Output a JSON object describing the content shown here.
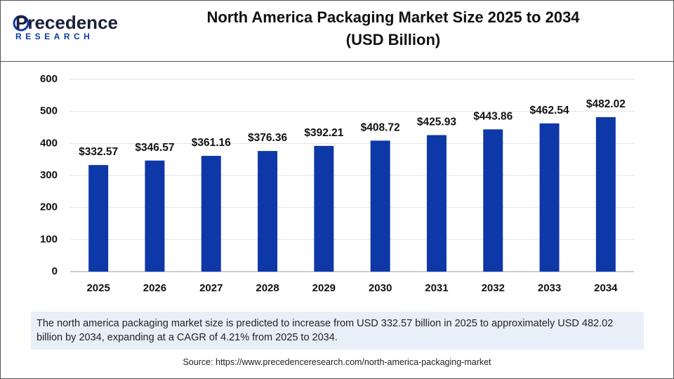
{
  "logo": {
    "name": "Precedence",
    "tagline": "RESEARCH"
  },
  "chart_data": {
    "type": "bar",
    "title": "North America Packaging Market Size 2025 to 2034",
    "subtitle": "(USD Billion)",
    "categories": [
      "2025",
      "2026",
      "2027",
      "2028",
      "2029",
      "2030",
      "2031",
      "2032",
      "2033",
      "2034"
    ],
    "values": [
      332.57,
      346.57,
      361.16,
      376.36,
      392.21,
      408.72,
      425.93,
      443.86,
      462.54,
      482.02
    ],
    "value_labels": [
      "$332.57",
      "$346.57",
      "$361.16",
      "$376.36",
      "$392.21",
      "$408.72",
      "$425.93",
      "$443.86",
      "$462.54",
      "$482.02"
    ],
    "color": "#0e38a8",
    "ylim": [
      0,
      600
    ],
    "yticks": [
      0,
      100,
      200,
      300,
      400,
      500,
      600
    ],
    "grid": true
  },
  "description": "The north america packaging market size is predicted to increase from USD 332.57 billion in 2025 to approximately USD 482.02 billion by 2034, expanding at a CAGR of 4.21% from 2025 to 2034.",
  "source": "Source: https://www.precedenceresearch.com/north-america-packaging-market"
}
